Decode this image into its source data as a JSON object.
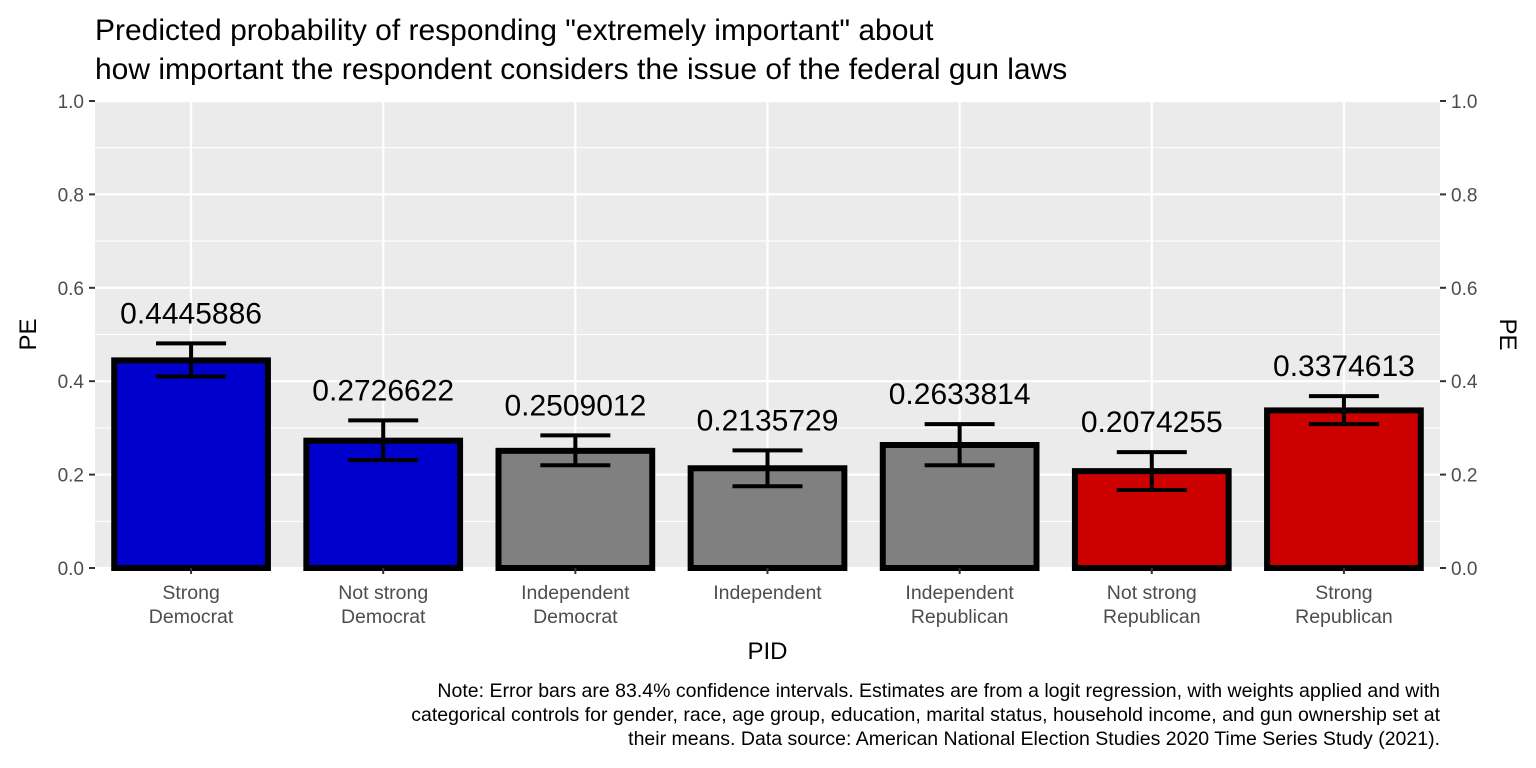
{
  "chart_data": {
    "type": "bar",
    "title": [
      "Predicted probability of responding \"extremely important\" about",
      "how important the respondent considers the issue of the federal gun laws"
    ],
    "xlabel": "PID",
    "ylabel": "PE",
    "ylabel_right": "PE",
    "ylim": [
      0,
      1.0
    ],
    "yticks": [
      0.0,
      0.2,
      0.4,
      0.6,
      0.8,
      1.0
    ],
    "ytick_labels": [
      "0.0",
      "0.2",
      "0.4",
      "0.6",
      "0.8",
      "1.0"
    ],
    "grid": true,
    "categories": [
      [
        "Strong",
        "Democrat"
      ],
      [
        "Not strong",
        "Democrat"
      ],
      [
        "Independent",
        "Democrat"
      ],
      [
        "Independent"
      ],
      [
        "Independent",
        "Republican"
      ],
      [
        "Not strong",
        "Republican"
      ],
      [
        "Strong",
        "Republican"
      ]
    ],
    "values": [
      0.4445886,
      0.2726622,
      0.2509012,
      0.2135729,
      0.2633814,
      0.2074255,
      0.3374613
    ],
    "value_labels": [
      "0.4445886",
      "0.2726622",
      "0.2509012",
      "0.2135729",
      "0.2633814",
      "0.2074255",
      "0.3374613"
    ],
    "error_lower": [
      0.41,
      0.231,
      0.22,
      0.175,
      0.22,
      0.167,
      0.308
    ],
    "error_upper": [
      0.481,
      0.316,
      0.284,
      0.252,
      0.308,
      0.248,
      0.368
    ],
    "bar_colors": [
      "#0000cd",
      "#0000cd",
      "#808080",
      "#808080",
      "#808080",
      "#cd0000",
      "#cd0000"
    ],
    "bar_outline_color": "#000000",
    "panel_background": "#ebebeb",
    "note": [
      "Note: Error bars are 83.4% confidence intervals. Estimates are from a logit regression, with weights applied and with",
      "categorical controls for gender, race, age group, education, marital status, household income, and gun ownership set at",
      "their means. Data source: American National Election Studies 2020 Time Series Study (2021)."
    ]
  }
}
